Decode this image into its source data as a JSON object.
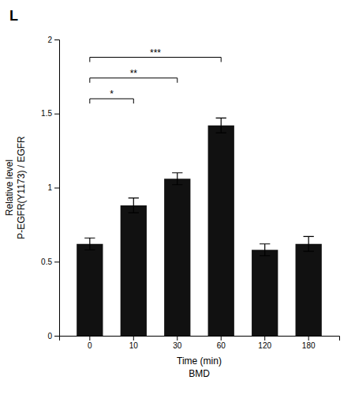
{
  "chart_data": {
    "type": "bar",
    "title": "L",
    "categories": [
      "0",
      "10",
      "30",
      "60",
      "120",
      "180"
    ],
    "values": [
      0.62,
      0.88,
      1.06,
      1.42,
      0.58,
      0.62
    ],
    "errors": [
      0.04,
      0.05,
      0.04,
      0.05,
      0.04,
      0.05
    ],
    "color": "#111111",
    "xlabel": "Time (min)\nBMD",
    "ylabel": "Relative level\nP-EGFR(Y1173) / EGFR",
    "ylim": [
      0.0,
      2.0
    ],
    "yticks": [
      0.0,
      0.5,
      1.0,
      1.5,
      2.0
    ],
    "grid": false,
    "significance": [
      {
        "from": "0",
        "to": "10",
        "y": 1.6,
        "label": "*"
      },
      {
        "from": "0",
        "to": "30",
        "y": 1.74,
        "label": "**"
      },
      {
        "from": "0",
        "to": "60",
        "y": 1.88,
        "label": "***"
      }
    ]
  }
}
